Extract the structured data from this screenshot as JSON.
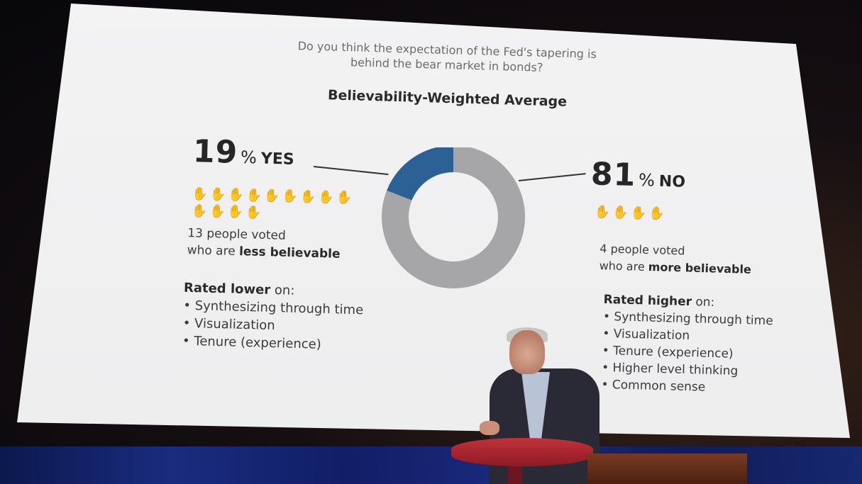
{
  "slide": {
    "question": "Do you think the expectation of the Fed's tapering is behind the bear market in bonds?",
    "subtitle": "Believability-Weighted Average",
    "yes": {
      "percent_number": "19",
      "percent_symbol": "%",
      "label": "YES",
      "share": 0.19,
      "color": "#2c6196",
      "hand_count": 13,
      "voted_line1": "13 people voted",
      "voted_line2_prefix": "who are ",
      "voted_line2_bold": "less believable",
      "rated_bold": "Rated lower",
      "rated_suffix": " on:",
      "rated_items": [
        "Synthesizing through time",
        "Visualization",
        "Tenure (experience)"
      ]
    },
    "no": {
      "percent_number": "81",
      "percent_symbol": "%",
      "label": "NO",
      "share": 0.81,
      "color": "#a6a6a8",
      "hand_count": 4,
      "voted_line1": "4 people voted",
      "voted_line2_prefix": "who are ",
      "voted_line2_bold": "more believable",
      "rated_bold": "Rated higher",
      "rated_suffix": " on:",
      "rated_items": [
        "Synthesizing through time",
        "Visualization",
        "Tenure (experience)",
        "Higher level thinking",
        "Common sense"
      ]
    },
    "hand_icon": "hand-icon"
  }
}
